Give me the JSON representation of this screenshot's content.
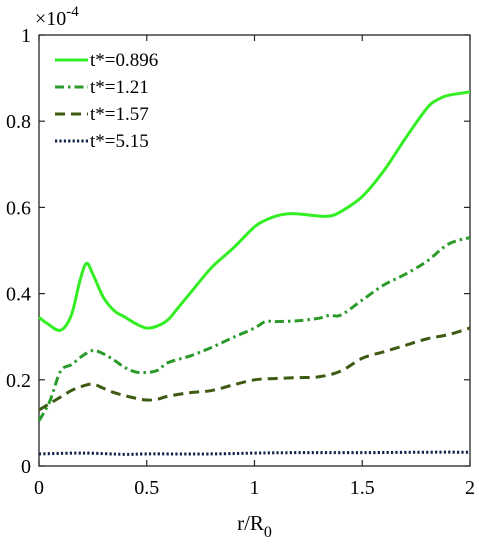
{
  "chart_data": {
    "type": "line",
    "xlabel": "r/R",
    "xlabel_sub": "0",
    "ylabel": "",
    "y_multiplier_base": "×10",
    "y_multiplier_exp": "-4",
    "xlim": [
      0,
      2
    ],
    "ylim": [
      0,
      1
    ],
    "xticks": [
      0,
      0.5,
      1,
      1.5,
      2
    ],
    "xtick_labels": [
      "0",
      "0.5",
      "1",
      "1.5",
      "2"
    ],
    "yticks": [
      0,
      0.2,
      0.4,
      0.6,
      0.8,
      1
    ],
    "ytick_labels": [
      "0",
      "0.2",
      "0.4",
      "0.6",
      "0.8",
      "1"
    ],
    "grid": false,
    "legend_position": "top-left",
    "series": [
      {
        "name": "t*=0.896",
        "color": "#33ee22",
        "dash": "solid",
        "x": [
          0,
          0.04,
          0.1,
          0.15,
          0.19,
          0.22,
          0.25,
          0.3,
          0.35,
          0.4,
          0.45,
          0.5,
          0.55,
          0.6,
          0.65,
          0.7,
          0.8,
          0.9,
          1.0,
          1.05,
          1.1,
          1.15,
          1.2,
          1.3,
          1.35,
          1.4,
          1.5,
          1.6,
          1.7,
          1.8,
          1.85,
          1.9,
          2.0
        ],
        "y": [
          0.345,
          0.33,
          0.315,
          0.35,
          0.43,
          0.47,
          0.445,
          0.39,
          0.36,
          0.345,
          0.33,
          0.32,
          0.325,
          0.34,
          0.37,
          0.4,
          0.46,
          0.505,
          0.555,
          0.57,
          0.58,
          0.585,
          0.585,
          0.58,
          0.58,
          0.59,
          0.625,
          0.685,
          0.76,
          0.83,
          0.85,
          0.86,
          0.868
        ]
      },
      {
        "name": "t*=1.21",
        "color": "#2a9a2a",
        "dash": "dashdot",
        "x": [
          0,
          0.05,
          0.1,
          0.15,
          0.2,
          0.25,
          0.3,
          0.35,
          0.4,
          0.45,
          0.5,
          0.55,
          0.6,
          0.7,
          0.8,
          0.9,
          1.0,
          1.05,
          1.1,
          1.2,
          1.3,
          1.35,
          1.4,
          1.5,
          1.6,
          1.7,
          1.8,
          1.9,
          2.0
        ],
        "y": [
          0.105,
          0.15,
          0.22,
          0.235,
          0.255,
          0.268,
          0.26,
          0.245,
          0.228,
          0.218,
          0.217,
          0.222,
          0.24,
          0.255,
          0.275,
          0.298,
          0.32,
          0.335,
          0.335,
          0.337,
          0.343,
          0.35,
          0.35,
          0.385,
          0.42,
          0.445,
          0.475,
          0.515,
          0.53
        ]
      },
      {
        "name": "t*=1.57",
        "color": "#3d5a12",
        "dash": "dashed",
        "x": [
          0,
          0.05,
          0.1,
          0.15,
          0.2,
          0.25,
          0.3,
          0.35,
          0.4,
          0.45,
          0.5,
          0.55,
          0.6,
          0.7,
          0.8,
          0.9,
          1.0,
          1.1,
          1.2,
          1.3,
          1.4,
          1.5,
          1.6,
          1.7,
          1.8,
          1.9,
          2.0
        ],
        "y": [
          0.13,
          0.145,
          0.16,
          0.175,
          0.185,
          0.19,
          0.18,
          0.17,
          0.163,
          0.157,
          0.153,
          0.155,
          0.162,
          0.17,
          0.175,
          0.188,
          0.2,
          0.203,
          0.205,
          0.207,
          0.22,
          0.25,
          0.265,
          0.28,
          0.295,
          0.305,
          0.32
        ]
      },
      {
        "name": "t*=5.15",
        "color": "#10214a",
        "dash": "dotted",
        "x": [
          0,
          0.2,
          0.4,
          0.5,
          0.8,
          1.0,
          1.2,
          1.5,
          1.8,
          2.0
        ],
        "y": [
          0.028,
          0.03,
          0.027,
          0.028,
          0.028,
          0.03,
          0.031,
          0.031,
          0.032,
          0.032
        ]
      }
    ]
  }
}
